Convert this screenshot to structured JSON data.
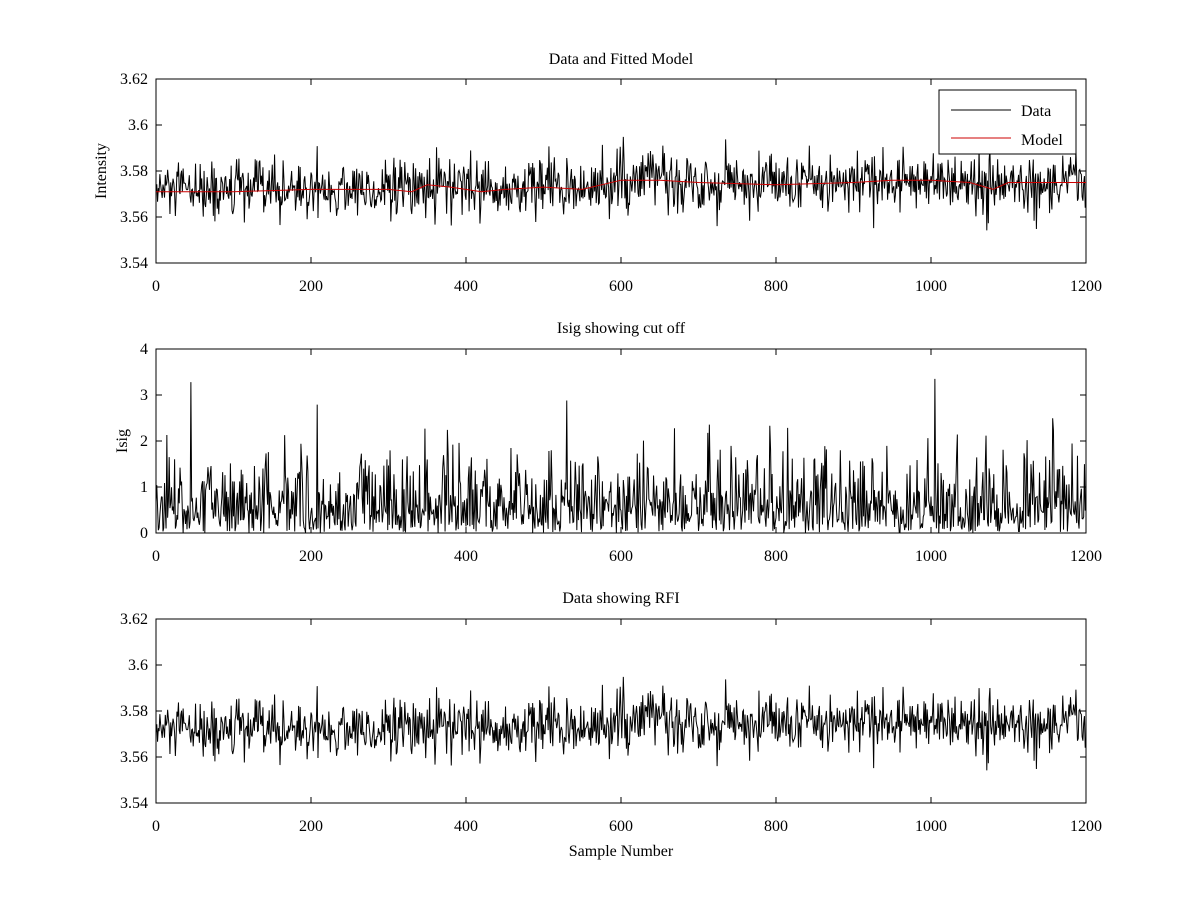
{
  "chart_data": [
    {
      "type": "line",
      "title": "Data and Fitted Model",
      "xlabel": "",
      "ylabel": "Intensity",
      "xlim": [
        0,
        1200
      ],
      "ylim": [
        3.54,
        3.62
      ],
      "xticks": [
        "0",
        "200",
        "400",
        "600",
        "800",
        "1000",
        "1200"
      ],
      "yticks": [
        "3.54",
        "3.56",
        "3.58",
        "3.6",
        "3.62"
      ],
      "grid": false,
      "legend": {
        "placement": "top-right",
        "entries": [
          "Data",
          "Model"
        ]
      },
      "series": [
        {
          "name": "Data",
          "color": "#000000",
          "kind": "noise",
          "n_samples": 1200,
          "mean_curve": {
            "x": [
              0,
              100,
              200,
              300,
              330,
              350,
              400,
              450,
              500,
              550,
              600,
              650,
              700,
              800,
              900,
              1000,
              1050,
              1080,
              1100,
              1200
            ],
            "y": [
              3.571,
              3.571,
              3.572,
              3.572,
              3.571,
              3.574,
              3.572,
              3.572,
              3.573,
              3.573,
              3.575,
              3.577,
              3.575,
              3.574,
              3.575,
              3.576,
              3.575,
              3.571,
              3.574,
              3.575
            ]
          },
          "std": 0.0065,
          "range": [
            3.554,
            3.595
          ]
        },
        {
          "name": "Model",
          "color": "#cc0000",
          "x": [
            0,
            100,
            200,
            300,
            330,
            350,
            380,
            420,
            450,
            500,
            550,
            600,
            650,
            700,
            800,
            900,
            950,
            1000,
            1050,
            1080,
            1100,
            1200
          ],
          "y": [
            3.571,
            3.571,
            3.572,
            3.572,
            3.571,
            3.574,
            3.573,
            3.571,
            3.572,
            3.573,
            3.572,
            3.576,
            3.576,
            3.575,
            3.574,
            3.575,
            3.576,
            3.576,
            3.575,
            3.572,
            3.575,
            3.575
          ]
        }
      ]
    },
    {
      "type": "line",
      "title": "Isig showing cut off",
      "xlabel": "",
      "ylabel": "Isig",
      "xlim": [
        0,
        1200
      ],
      "ylim": [
        0,
        4
      ],
      "xticks": [
        "0",
        "200",
        "400",
        "600",
        "800",
        "1000",
        "1200"
      ],
      "yticks": [
        "0",
        "1",
        "2",
        "3",
        "4"
      ],
      "grid": false,
      "series": [
        {
          "color": "#000000",
          "kind": "abs-noise",
          "n_samples": 1200,
          "scale": 0.8,
          "range": [
            0,
            3.35
          ],
          "peaks": {
            "x": [
              45,
              530,
              1005
            ],
            "y": [
              3.28,
              2.88,
              3.35
            ]
          }
        }
      ]
    },
    {
      "type": "line",
      "title": "Data showing RFI",
      "xlabel": "Sample Number",
      "ylabel": "",
      "xlim": [
        0,
        1200
      ],
      "ylim": [
        3.54,
        3.62
      ],
      "xticks": [
        "0",
        "200",
        "400",
        "600",
        "800",
        "1000",
        "1200"
      ],
      "yticks": [
        "3.54",
        "3.56",
        "3.58",
        "3.6",
        "3.62"
      ],
      "grid": false,
      "series": [
        {
          "color": "#000000",
          "kind": "noise",
          "n_samples": 1200,
          "mean_curve": {
            "x": [
              0,
              100,
              200,
              300,
              330,
              350,
              400,
              450,
              500,
              550,
              600,
              650,
              700,
              800,
              900,
              1000,
              1050,
              1080,
              1100,
              1200
            ],
            "y": [
              3.571,
              3.571,
              3.572,
              3.572,
              3.571,
              3.574,
              3.572,
              3.572,
              3.573,
              3.573,
              3.575,
              3.577,
              3.575,
              3.574,
              3.575,
              3.576,
              3.575,
              3.571,
              3.574,
              3.575
            ]
          },
          "std": 0.0065,
          "range": [
            3.554,
            3.595
          ]
        }
      ]
    }
  ]
}
